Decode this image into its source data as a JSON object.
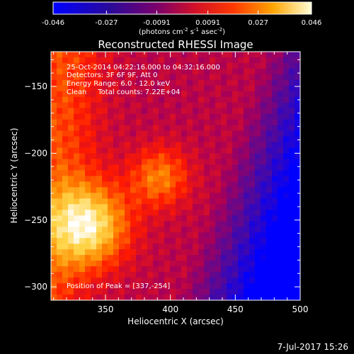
{
  "colorbar": {
    "ticks": [
      "-0.046",
      "-0.027",
      "-0.0091",
      "0.0091",
      "0.027",
      "0.046"
    ],
    "label_prefix": "(photons cm",
    "label_sup1": "-2",
    "label_mid": " s",
    "label_sup2": "-1",
    "label_after": " asec",
    "label_sup3": "-2",
    "label_suffix": ")"
  },
  "plot": {
    "title": "Reconstructed RHESSI Image",
    "info_lines": [
      "25-Oct-2014 04:22:16.000 to 04:32:16.000",
      "Detectors: 3F 6F 9F, Att 0",
      "Energy Range: 6.0 - 12.0 keV",
      "Clean     Total counts: 7.22E+04"
    ],
    "peak_text": "Position of Peak = [337,-254]",
    "date_stamp": "7-Jul-2017 15:26"
  },
  "chart_data": {
    "type": "heatmap",
    "title": "Reconstructed RHESSI Image",
    "xlabel": "Heliocentric X (arcsec)",
    "ylabel": "Heliocentric Y (arcsec)",
    "xlim": [
      308,
      500
    ],
    "ylim": [
      -310,
      -124
    ],
    "xticks": [
      350,
      400,
      450,
      500
    ],
    "yticks": [
      -150,
      -200,
      -250,
      -300
    ],
    "colorbar_range": [
      -0.046,
      0.046
    ],
    "colorbar_ticks": [
      -0.046,
      -0.027,
      -0.0091,
      0.0091,
      0.027,
      0.046
    ],
    "colorbar_label": "(photons cm-2 s-1 asec-2)",
    "peak": {
      "x": 337,
      "y": -254
    },
    "secondary_peak": {
      "x": 392,
      "y": -218
    },
    "grid": false,
    "colormap": [
      "#0000ff",
      "#4b0aa0",
      "#a80058",
      "#ff1a00",
      "#ff8a00",
      "#ffd64a",
      "#ffffff"
    ]
  }
}
